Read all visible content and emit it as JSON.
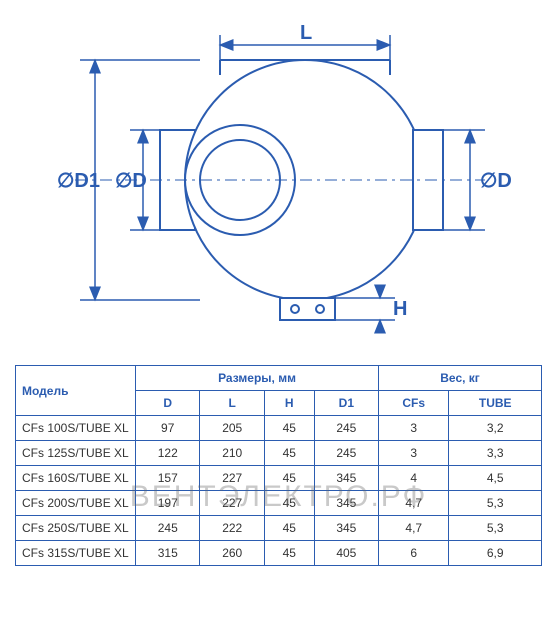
{
  "diagram": {
    "labels": {
      "D1": "∅D1",
      "D_left": "∅D",
      "D_right": "∅D",
      "L": "L",
      "H": "H"
    },
    "colors": {
      "stroke": "#2b5cb0",
      "fill_light": "#ffffff",
      "fill_shade": "#e8eef8"
    },
    "stroke_width": 2
  },
  "table": {
    "header_group_model": "Модель",
    "header_group_dims": "Размеры, мм",
    "header_group_weight": "Вес, кг",
    "cols_dims": [
      "D",
      "L",
      "H",
      "D1"
    ],
    "cols_weight": [
      "CFs",
      "TUBE"
    ],
    "rows": [
      {
        "model": "CFs 100S/TUBE XL",
        "D": "97",
        "L": "205",
        "H": "45",
        "D1": "245",
        "CFs": "3",
        "TUBE": "3,2"
      },
      {
        "model": "CFs 125S/TUBE XL",
        "D": "122",
        "L": "210",
        "H": "45",
        "D1": "245",
        "CFs": "3",
        "TUBE": "3,3"
      },
      {
        "model": "CFs 160S/TUBE XL",
        "D": "157",
        "L": "227",
        "H": "45",
        "D1": "345",
        "CFs": "4",
        "TUBE": "4,5"
      },
      {
        "model": "CFs 200S/TUBE XL",
        "D": "197",
        "L": "227",
        "H": "45",
        "D1": "345",
        "CFs": "4,7",
        "TUBE": "5,3"
      },
      {
        "model": "CFs 250S/TUBE XL",
        "D": "245",
        "L": "222",
        "H": "45",
        "D1": "345",
        "CFs": "4,7",
        "TUBE": "5,3"
      },
      {
        "model": "CFs 315S/TUBE XL",
        "D": "315",
        "L": "260",
        "H": "45",
        "D1": "405",
        "CFs": "6",
        "TUBE": "6,9"
      }
    ],
    "colors": {
      "border": "#2b5cb0",
      "header_text": "#2b5cb0",
      "cell_text": "#333333",
      "background": "#ffffff"
    },
    "font_size": 12
  },
  "watermark": "ВЕНТЭЛЕКТРО.РФ"
}
